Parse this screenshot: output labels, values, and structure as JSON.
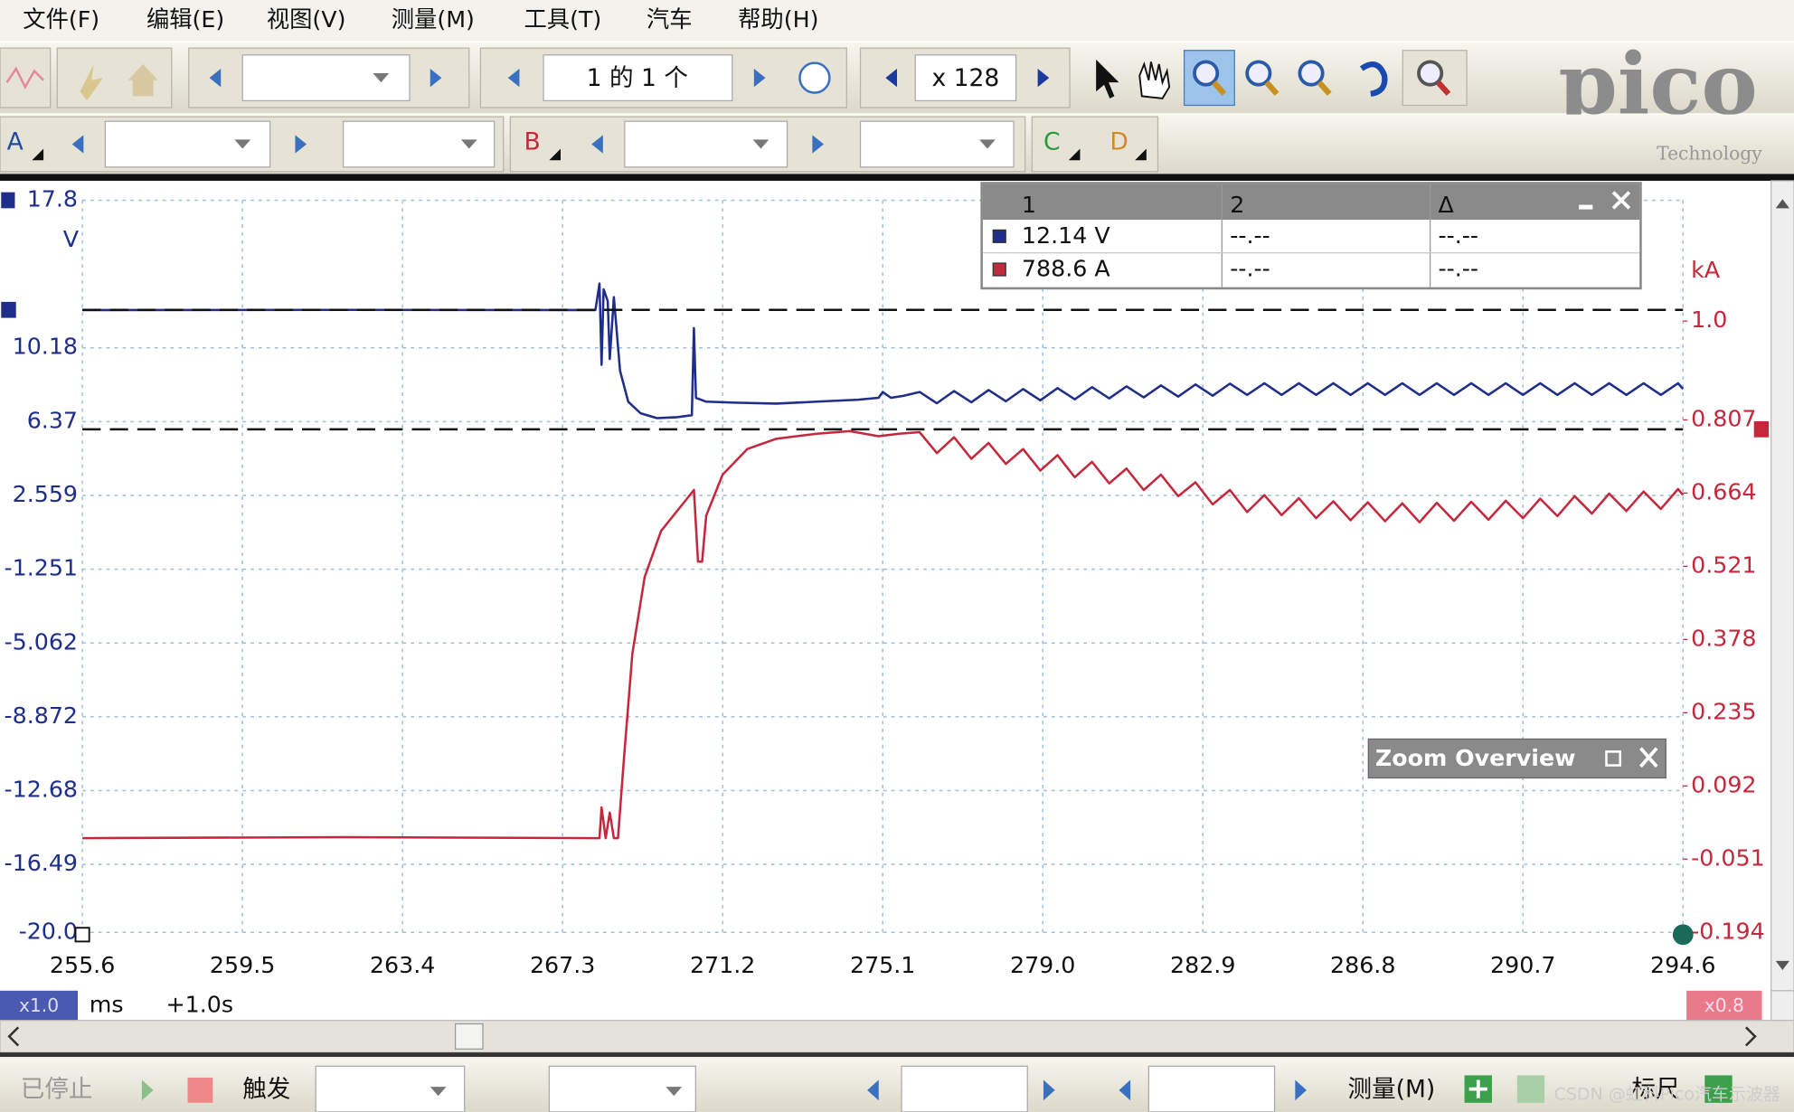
{
  "menu": [
    "文件(F)",
    "编辑(E)",
    "视图(V)",
    "测量(M)",
    "工具(T)",
    "汽车",
    "帮助(H)"
  ],
  "toolbar": {
    "page": "1 的 1 个",
    "zoom": "x 128",
    "channels": [
      "A",
      "B",
      "C",
      "D"
    ]
  },
  "logo": {
    "name": "pico",
    "sub": "Technology"
  },
  "chart_data": {
    "type": "line",
    "y_unit": "V",
    "y2_unit": "kA",
    "grid": true,
    "xlim": [
      255.6,
      294.6
    ],
    "xticks": [
      255.6,
      259.5,
      263.4,
      267.3,
      271.2,
      275.1,
      {
        "value": 279,
        "label": "279.0"
      },
      282.9,
      286.8,
      290.7,
      294.6
    ],
    "ylim": [
      -20,
      17.8
    ],
    "yticks": [
      17.8,
      10.18,
      6.37,
      2.559,
      -1.251,
      -5.062,
      -8.872,
      -12.68,
      -16.49,
      {
        "value": -20,
        "label": "-20.0"
      }
    ],
    "y2lim": [
      -0.194,
      1.236
    ],
    "y2ticks": [
      {
        "value": 1,
        "label": "1.0"
      },
      0.807,
      0.664,
      0.521,
      0.378,
      0.235,
      0.092,
      -0.051,
      -0.194
    ],
    "series": [
      {
        "color": "#1f2e8a",
        "axis": "y",
        "x": [
          255.6,
          262.0,
          268.1,
          268.2,
          268.25,
          268.3,
          268.4,
          268.45,
          268.55,
          268.7,
          268.9,
          269.2,
          269.6,
          270.1,
          270.45,
          270.5,
          270.55,
          270.8,
          271.5,
          272.5,
          273.5,
          274.5,
          275.0,
          275.1,
          275.3,
          275.6,
          276.0,
          276.42,
          276.84,
          277.26,
          277.68,
          278.1,
          278.52,
          278.94,
          279.36,
          279.78,
          280.2,
          280.62,
          281.04,
          281.46,
          281.88,
          282.3,
          282.72,
          283.14,
          283.56,
          283.98,
          284.4,
          284.82,
          285.24,
          285.66,
          286.08,
          286.5,
          286.92,
          287.34,
          287.76,
          288.18,
          288.6,
          289.02,
          289.44,
          289.86,
          290.28,
          290.7,
          291.12,
          291.54,
          291.96,
          292.38,
          292.8,
          293.22,
          293.64,
          294.06,
          294.48,
          294.6
        ],
        "values": [
          12.13,
          12.14,
          12.13,
          13.5,
          9.3,
          13.2,
          12.6,
          9.6,
          12.8,
          9.0,
          7.4,
          6.8,
          6.55,
          6.6,
          6.7,
          11.2,
          7.6,
          7.4,
          7.35,
          7.3,
          7.4,
          7.5,
          7.6,
          7.9,
          7.6,
          7.7,
          7.9,
          7.32,
          7.95,
          7.37,
          8.0,
          7.42,
          8.05,
          7.47,
          8.1,
          7.52,
          8.15,
          7.57,
          8.19,
          7.62,
          8.24,
          7.66,
          8.29,
          7.71,
          8.33,
          7.75,
          8.35,
          7.75,
          8.35,
          7.75,
          8.35,
          7.75,
          8.35,
          7.75,
          8.35,
          7.75,
          8.35,
          7.75,
          8.35,
          7.75,
          8.35,
          7.75,
          8.35,
          7.75,
          8.35,
          7.75,
          8.35,
          7.75,
          8.35,
          7.75,
          8.35,
          8.05
        ]
      },
      {
        "color": "#c4283c",
        "axis": "y2",
        "x": [
          255.6,
          262.0,
          268.2,
          268.25,
          268.35,
          268.45,
          268.55,
          268.65,
          268.8,
          269.0,
          269.3,
          269.7,
          270.2,
          270.5,
          270.6,
          270.7,
          270.8,
          271.2,
          271.8,
          272.5,
          273.5,
          274.3,
          275.0,
          275.5,
          276.0,
          276.42,
          276.84,
          277.26,
          277.68,
          278.1,
          278.52,
          278.94,
          279.36,
          279.78,
          280.2,
          280.62,
          281.04,
          281.46,
          281.88,
          282.3,
          282.72,
          283.14,
          283.56,
          283.98,
          284.4,
          284.82,
          285.24,
          285.66,
          286.08,
          286.5,
          286.92,
          287.34,
          287.76,
          288.18,
          288.6,
          289.02,
          289.44,
          289.86,
          290.28,
          290.7,
          291.12,
          291.54,
          291.96,
          292.38,
          292.8,
          293.22,
          293.64,
          294.06,
          294.48,
          294.6
        ],
        "values": [
          -0.01,
          -0.008,
          -0.01,
          0.05,
          -0.01,
          0.04,
          -0.01,
          -0.01,
          0.15,
          0.35,
          0.5,
          0.59,
          0.64,
          0.67,
          0.53,
          0.53,
          0.62,
          0.7,
          0.75,
          0.77,
          0.78,
          0.785,
          0.775,
          0.78,
          0.783,
          0.742,
          0.773,
          0.731,
          0.762,
          0.721,
          0.75,
          0.708,
          0.738,
          0.695,
          0.725,
          0.683,
          0.712,
          0.67,
          0.7,
          0.658,
          0.685,
          0.642,
          0.67,
          0.627,
          0.66,
          0.621,
          0.654,
          0.615,
          0.648,
          0.611,
          0.646,
          0.609,
          0.644,
          0.607,
          0.645,
          0.61,
          0.647,
          0.612,
          0.649,
          0.615,
          0.653,
          0.619,
          0.658,
          0.624,
          0.663,
          0.629,
          0.667,
          0.633,
          0.672,
          0.66
        ]
      }
    ]
  },
  "rulers": {
    "headers": [
      "1",
      "2",
      "Δ"
    ],
    "rows": [
      {
        "color": "#1f2e8a",
        "axis": "y",
        "cells": [
          {
            "value": 12.14,
            "label": "12.14 V"
          },
          "--.--",
          "--.--"
        ]
      },
      {
        "color": "#c4283c",
        "axis": "y2",
        "cells": [
          {
            "value": 0.7886,
            "label": "788.6 A"
          },
          "--.--",
          "--.--"
        ]
      }
    ]
  },
  "zoom_overview": "Zoom Overview",
  "axis_bar": {
    "x_scale": "x1.0",
    "unit": "ms",
    "offset": "+1.0s",
    "y2_scale": "x0.8"
  },
  "status": {
    "stopped": "已停止",
    "trigger": "触发",
    "measure": "测量(M)",
    "ruler": "标尺"
  },
  "watermark": "CSDN @虹科Pico汽车示波器"
}
